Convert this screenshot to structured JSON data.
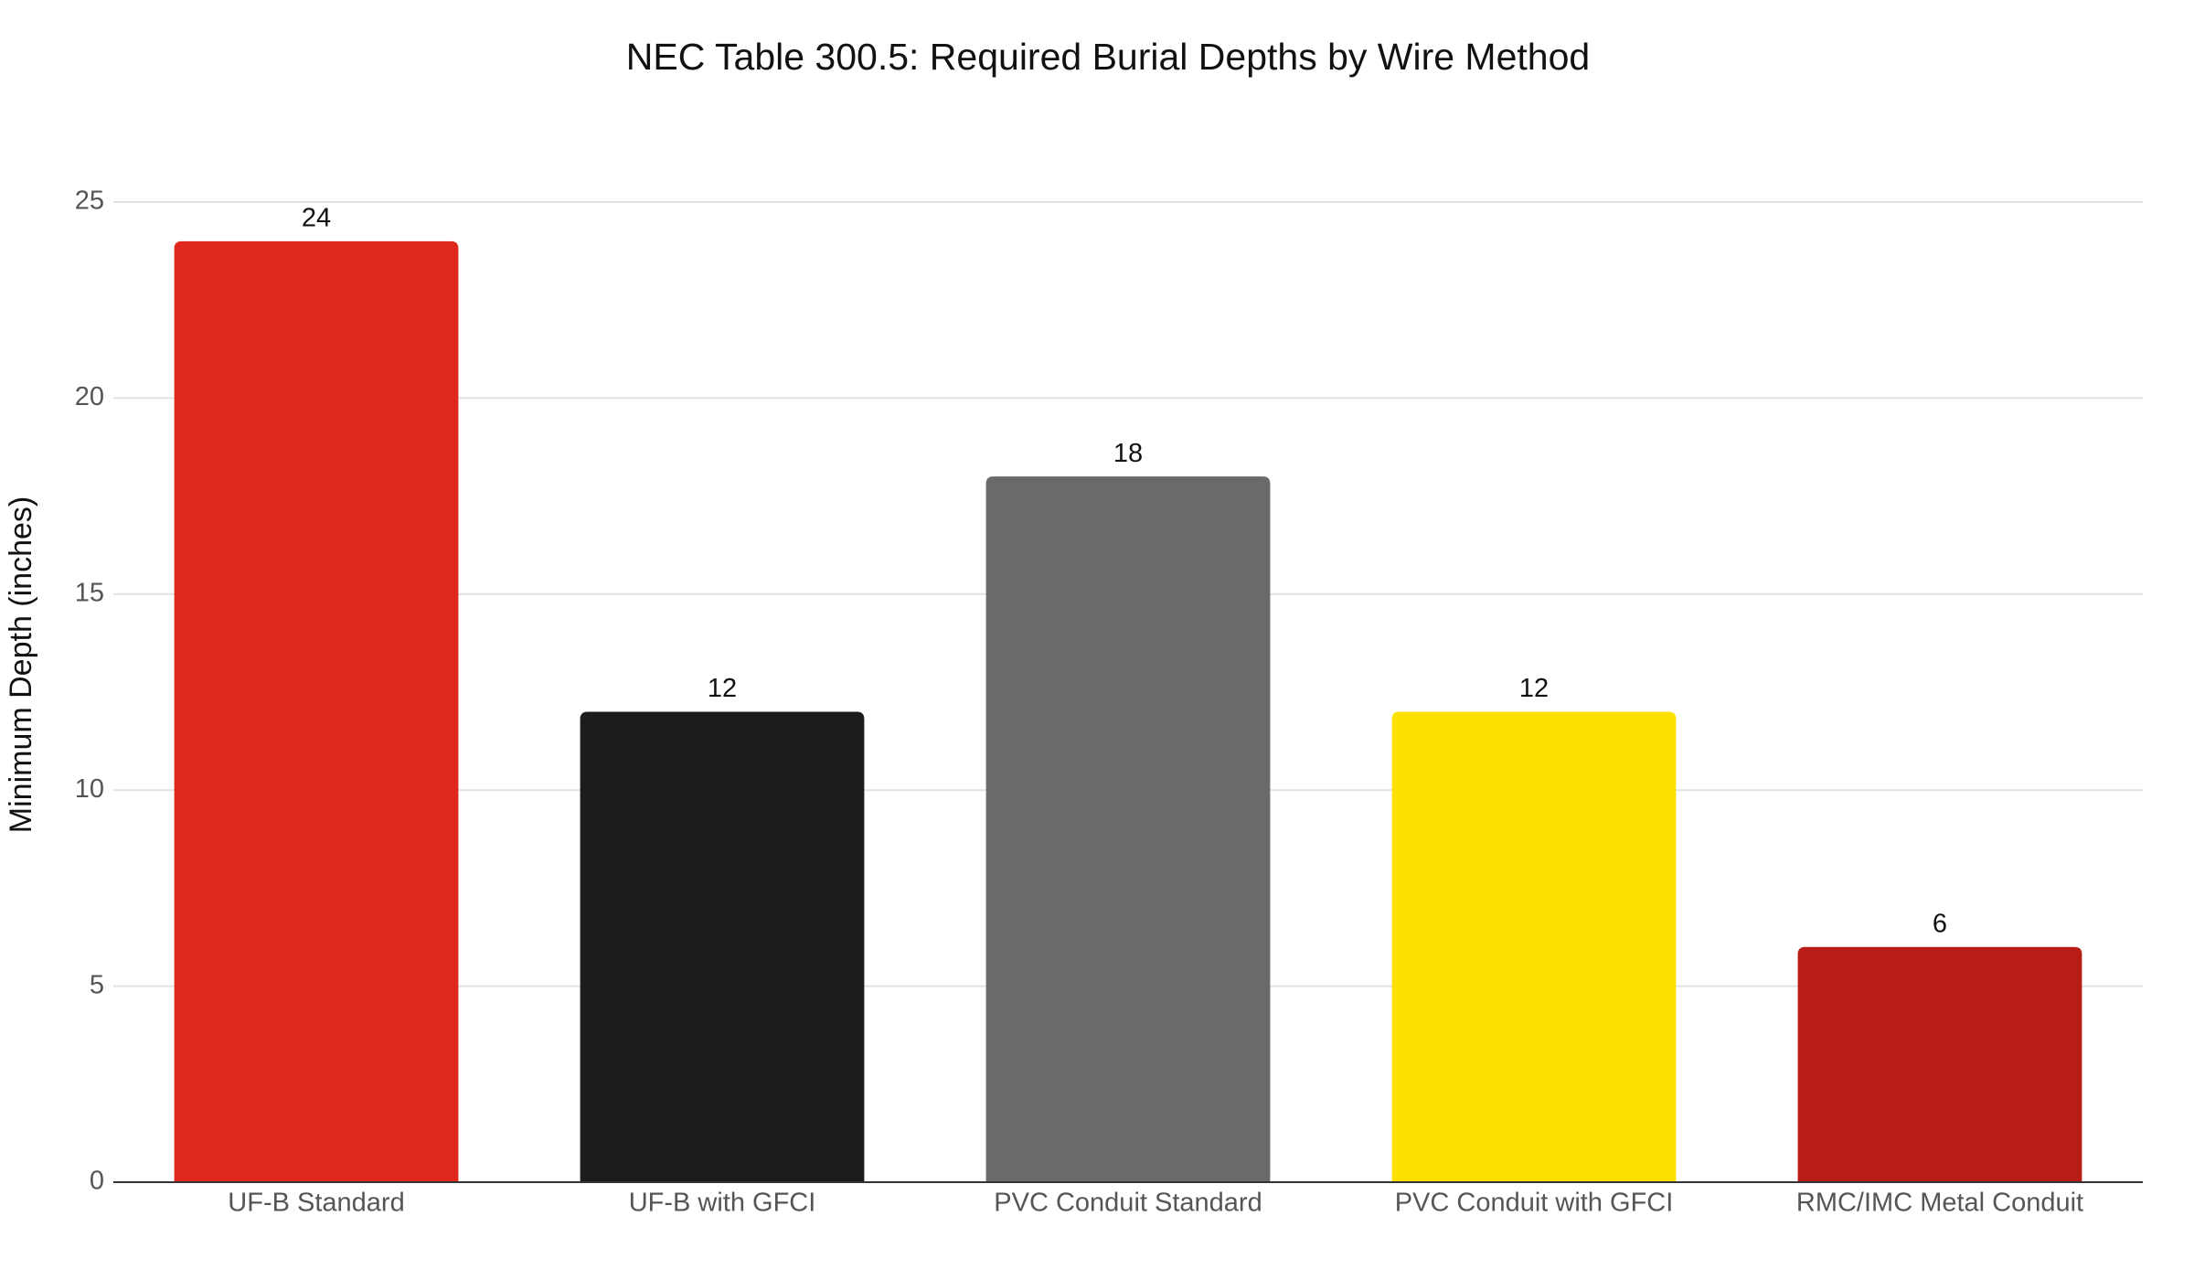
{
  "chart_data": {
    "type": "bar",
    "title": "NEC Table 300.5: Required Burial Depths by Wire Method",
    "y_label": "Minimum Depth (inches)",
    "categories": [
      "UF-B Standard",
      "UF-B with GFCI",
      "PVC Conduit Standard",
      "PVC Conduit with GFCI",
      "RMC/IMC Metal Conduit"
    ],
    "values": [
      24,
      12,
      18,
      12,
      6
    ],
    "colors": [
      "#e0271c",
      "#1c1c1c",
      "#6a6a6a",
      "#fce100",
      "#b71c16"
    ],
    "ylim": [
      0,
      25
    ],
    "yticks": [
      0,
      5,
      10,
      15,
      20,
      25
    ],
    "grid": true
  }
}
